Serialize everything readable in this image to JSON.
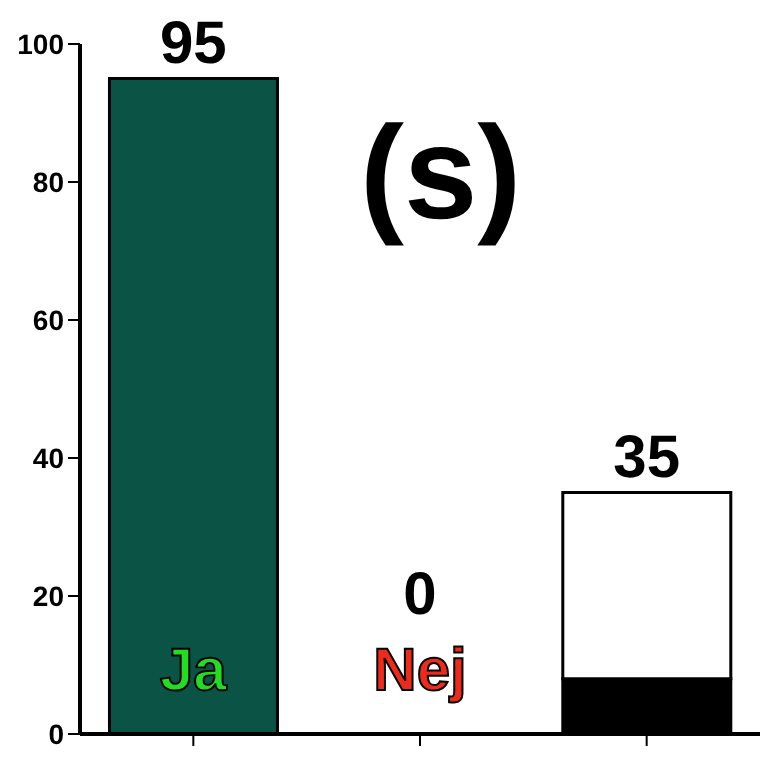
{
  "chart_data": {
    "type": "bar",
    "stacked": true,
    "categories": [
      "Ja",
      "Nej",
      null
    ],
    "series": [
      {
        "colors": [
          "#0b5345",
          "#0b5345",
          "#000000"
        ],
        "values": [
          95,
          0,
          8
        ]
      },
      {
        "color": "#ffffff",
        "values": [
          null,
          null,
          27
        ]
      }
    ],
    "totals": [
      "95",
      "0",
      "35"
    ],
    "ylim": [
      0,
      100
    ],
    "yticks": [
      0,
      20,
      40,
      60,
      80,
      100
    ],
    "grid": false,
    "legend": false,
    "annotations": [
      "(s)"
    ]
  }
}
